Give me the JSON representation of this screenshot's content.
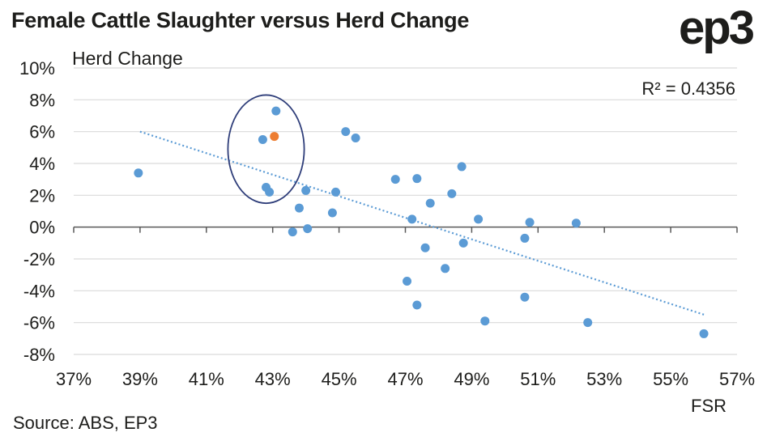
{
  "title": "Female Cattle Slaughter versus Herd Change",
  "logo": "ep3",
  "source": "Source: ABS, EP3",
  "colors": {
    "point": "#5b9bd5",
    "highlight": "#ed7d31",
    "trendline": "#5b9bd5",
    "ellipse": "#2f3e7a",
    "grid": "#d9d9d9",
    "axis": "#595959"
  },
  "chart_data": {
    "type": "scatter",
    "title": "Female Cattle Slaughter versus Herd Change",
    "xlabel": "FSR",
    "ylabel": "Herd Change",
    "xlim": [
      37,
      57
    ],
    "ylim": [
      -8,
      10
    ],
    "x_ticks": [
      "37%",
      "39%",
      "41%",
      "43%",
      "45%",
      "47%",
      "49%",
      "51%",
      "53%",
      "55%",
      "57%"
    ],
    "y_ticks": [
      "10%",
      "8%",
      "6%",
      "4%",
      "2%",
      "0%",
      "-2%",
      "-4%",
      "-6%",
      "-8%"
    ],
    "grid": "horizontal",
    "annotation": "R² = 0.4356",
    "trendline": {
      "style": "dotted",
      "x": [
        39.0,
        56.0
      ],
      "y": [
        6.0,
        -5.5
      ]
    },
    "highlight_ellipse": {
      "cx": 42.8,
      "cy": 4.9,
      "rx": 1.15,
      "ry": 3.4
    },
    "points": [
      {
        "x": 38.95,
        "y": 3.4
      },
      {
        "x": 42.7,
        "y": 5.5
      },
      {
        "x": 43.1,
        "y": 7.3
      },
      {
        "x": 42.8,
        "y": 2.5
      },
      {
        "x": 42.9,
        "y": 2.2
      },
      {
        "x": 43.6,
        "y": -0.3
      },
      {
        "x": 43.8,
        "y": 1.2
      },
      {
        "x": 44.0,
        "y": 2.3
      },
      {
        "x": 44.05,
        "y": -0.1
      },
      {
        "x": 44.8,
        "y": 0.9
      },
      {
        "x": 44.9,
        "y": 2.2
      },
      {
        "x": 45.2,
        "y": 6.0
      },
      {
        "x": 45.5,
        "y": 5.6
      },
      {
        "x": 46.7,
        "y": 3.0
      },
      {
        "x": 47.05,
        "y": -3.4
      },
      {
        "x": 47.2,
        "y": 0.5
      },
      {
        "x": 47.35,
        "y": 3.05
      },
      {
        "x": 47.35,
        "y": -4.9
      },
      {
        "x": 47.6,
        "y": -1.3
      },
      {
        "x": 47.75,
        "y": 1.5
      },
      {
        "x": 48.2,
        "y": -2.6
      },
      {
        "x": 48.4,
        "y": 2.1
      },
      {
        "x": 48.7,
        "y": 3.8
      },
      {
        "x": 48.75,
        "y": -1.0
      },
      {
        "x": 49.2,
        "y": 0.5
      },
      {
        "x": 49.4,
        "y": -5.9
      },
      {
        "x": 50.6,
        "y": -0.7
      },
      {
        "x": 50.6,
        "y": -4.4
      },
      {
        "x": 50.75,
        "y": 0.3
      },
      {
        "x": 52.15,
        "y": 0.25
      },
      {
        "x": 52.5,
        "y": -6.0
      },
      {
        "x": 56.0,
        "y": -6.7
      }
    ],
    "highlight_points": [
      {
        "x": 43.05,
        "y": 5.7
      }
    ]
  }
}
